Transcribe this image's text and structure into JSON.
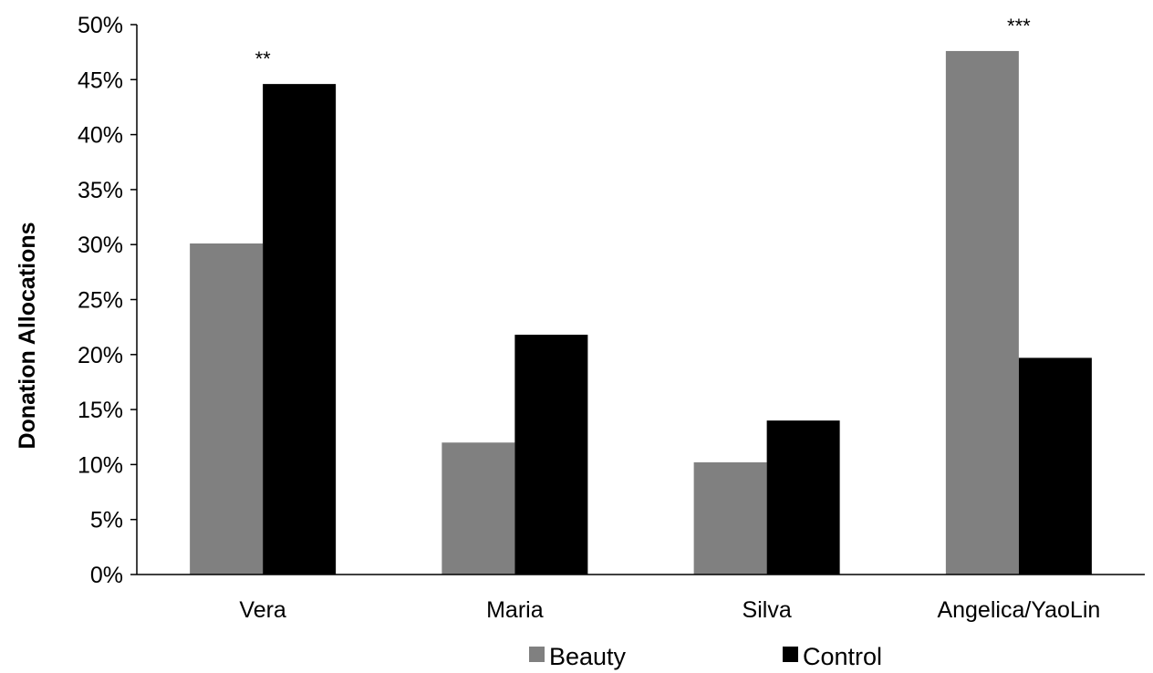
{
  "chart_data": {
    "type": "bar",
    "title": "",
    "xlabel": "",
    "ylabel": "Donation Allocations",
    "categories": [
      "Vera",
      "Maria",
      "Silva",
      "Angelica/YaoLin"
    ],
    "series": [
      {
        "name": "Beauty",
        "color": "#808080",
        "values": [
          0.301,
          0.12,
          0.102,
          0.476
        ]
      },
      {
        "name": "Control",
        "color": "#000000",
        "values": [
          0.446,
          0.218,
          0.14,
          0.197
        ]
      }
    ],
    "annotations": [
      "**",
      "",
      "",
      "***"
    ],
    "ylim": [
      0,
      0.5
    ],
    "yticks": [
      "0%",
      "5%",
      "10%",
      "15%",
      "20%",
      "25%",
      "30%",
      "35%",
      "40%",
      "45%",
      "50%"
    ],
    "grid": false,
    "legend_position": "bottom"
  }
}
